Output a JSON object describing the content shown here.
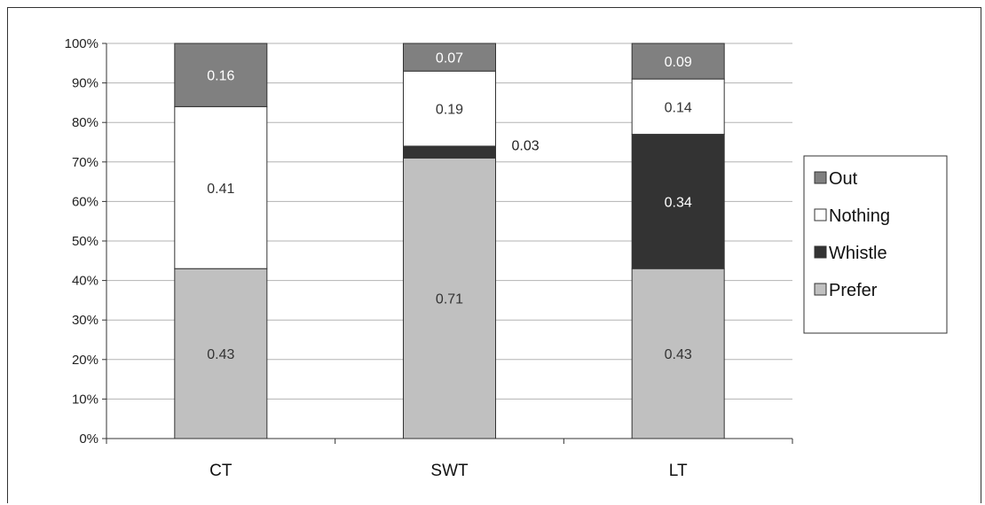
{
  "chart_data": {
    "type": "bar",
    "stacked": true,
    "percent_scale": true,
    "categories": [
      "CT",
      "SWT",
      "LT"
    ],
    "series": [
      {
        "name": "Prefer",
        "color": "#c0c0c0",
        "values": [
          0.43,
          0.71,
          0.43
        ],
        "labels": [
          "0.43",
          "0.71",
          "0.43"
        ],
        "label_color": "#333333"
      },
      {
        "name": "Whistle",
        "color": "#333333",
        "values": [
          0.0,
          0.03,
          0.34
        ],
        "labels": [
          "",
          "0.03",
          "0.34"
        ],
        "label_color": "#ffffff"
      },
      {
        "name": "Nothing",
        "color": "#ffffff",
        "values": [
          0.41,
          0.19,
          0.14
        ],
        "labels": [
          "0.41",
          "0.19",
          "0.14"
        ],
        "label_color": "#333333"
      },
      {
        "name": "Out",
        "color": "#808080",
        "values": [
          0.16,
          0.07,
          0.09
        ],
        "labels": [
          "0.16",
          "0.07",
          "0.09"
        ],
        "label_color": "#ffffff"
      }
    ],
    "outside_labels": [
      {
        "category": "SWT",
        "series": "Whistle",
        "text": "0.03"
      }
    ],
    "y_ticks": [
      "0%",
      "10%",
      "20%",
      "30%",
      "40%",
      "50%",
      "60%",
      "70%",
      "80%",
      "90%",
      "100%"
    ],
    "ylim": [
      0,
      1
    ],
    "grid": true,
    "legend_order": [
      "Out",
      "Nothing",
      "Whistle",
      "Prefer"
    ],
    "legend_position": "right",
    "title": "",
    "xlabel": "",
    "ylabel": ""
  }
}
